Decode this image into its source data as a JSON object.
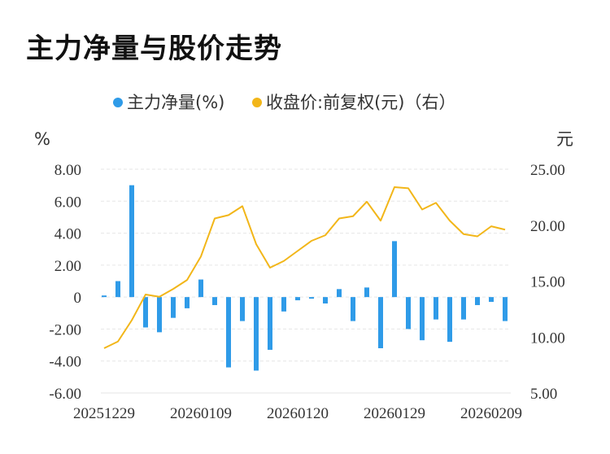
{
  "title": "主力净量与股价走势",
  "colors": {
    "bar": "#2f9be8",
    "line": "#f2b619",
    "grid": "#e6e6e6"
  },
  "chart_data": {
    "type": "bar+line",
    "title": "主力净量与股价走势",
    "legend": [
      "主力净量(%)",
      "收盘价:前复权(元)（右）"
    ],
    "legend_position": "top",
    "left_unit": "%",
    "right_unit": "元",
    "grid": true,
    "y_left": {
      "min": -6,
      "max": 8,
      "ticks": [
        "8.00",
        "6.00",
        "4.00",
        "2.00",
        "0",
        "-2.00",
        "-4.00",
        "-6.00"
      ]
    },
    "y_right": {
      "min": 5,
      "max": 25,
      "ticks": [
        "25.00",
        "20.00",
        "15.00",
        "10.00",
        "5.00"
      ]
    },
    "x_tick_labels": [
      {
        "index": 0,
        "label": "20251229"
      },
      {
        "index": 7,
        "label": "20260109"
      },
      {
        "index": 14,
        "label": "20260120"
      },
      {
        "index": 21,
        "label": "20260129"
      },
      {
        "index": 28,
        "label": "20260209"
      }
    ],
    "series": [
      {
        "name": "主力净量(%)",
        "type": "bar",
        "axis": "left",
        "values": [
          0.1,
          1.0,
          7.0,
          -1.9,
          -2.2,
          -1.3,
          -0.7,
          1.1,
          -0.5,
          -4.4,
          -1.5,
          -4.6,
          -3.3,
          -0.9,
          -0.2,
          -0.1,
          -0.4,
          0.5,
          -1.5,
          0.6,
          -3.2,
          3.5,
          -2.0,
          -2.7,
          -1.4,
          -2.8,
          -1.4,
          -0.5,
          -0.3,
          -1.5
        ]
      },
      {
        "name": "收盘价:前复权(元)（右）",
        "type": "line",
        "axis": "right",
        "values": [
          9.0,
          9.6,
          11.5,
          13.8,
          13.6,
          14.3,
          15.1,
          17.2,
          20.6,
          20.9,
          21.7,
          18.3,
          16.2,
          16.8,
          17.7,
          18.6,
          19.1,
          20.6,
          20.8,
          22.1,
          20.4,
          23.4,
          23.3,
          21.4,
          22.0,
          20.4,
          19.2,
          19.0,
          19.9,
          19.6
        ]
      }
    ]
  }
}
